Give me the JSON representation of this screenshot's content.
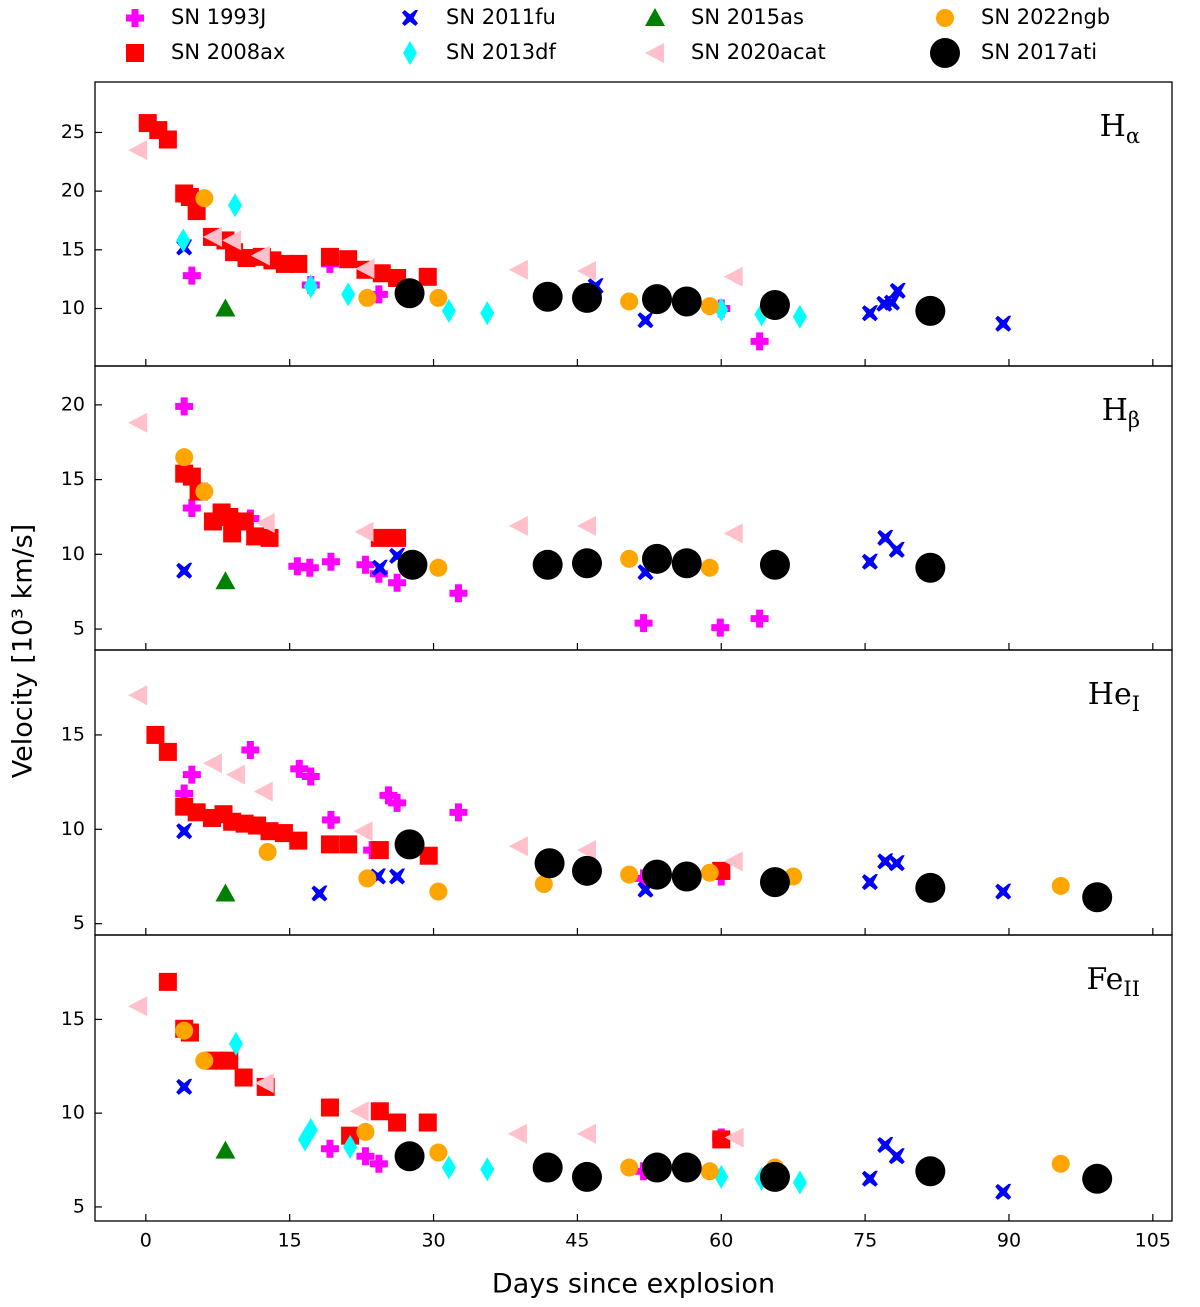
{
  "ylabel": "Velocity [10³ km/s]",
  "chart_data": [
    {
      "type": "scatter",
      "label": {
        "text": "H",
        "subscript": "α"
      },
      "xlim": [
        -5.3,
        107
      ],
      "ylim": [
        5.1,
        29.3
      ],
      "yticks": [
        10,
        15,
        20,
        25
      ],
      "series": [
        {
          "name": "SN 1993J",
          "color": "#ff00ff",
          "marker": "plus",
          "x": [
            4.8,
            17.2,
            19.2,
            24.3,
            60,
            64
          ],
          "values": [
            12.8,
            12.0,
            13.8,
            11.2,
            10.0,
            7.2
          ]
        },
        {
          "name": "SN 2008ax",
          "color": "#ff0000",
          "marker": "square",
          "x": [
            0.2,
            1.3,
            2.3,
            4,
            4.6,
            5.3,
            6.9,
            8.3,
            9.2,
            10.5,
            12.1,
            13.2,
            14.5,
            15.9,
            19.2,
            21.1,
            22.9,
            24.6,
            26.2,
            29.4
          ],
          "values": [
            25.8,
            25.2,
            24.4,
            19.8,
            19.5,
            18.3,
            16.1,
            15.8,
            14.8,
            14.3,
            14.4,
            14.1,
            13.8,
            13.8,
            14.4,
            14.2,
            13.3,
            13.0,
            12.6,
            12.7
          ]
        },
        {
          "name": "SN 2011fu",
          "color": "#0000ff",
          "marker": "x",
          "x": [
            4,
            46.9,
            52.1,
            75.5,
            77,
            77.8,
            78.4,
            89.4
          ],
          "values": [
            15.2,
            11.9,
            9.0,
            9.6,
            10.4,
            10.5,
            11.5,
            8.7
          ]
        },
        {
          "name": "SN 2013df",
          "color": "#00ffff",
          "marker": "diamond",
          "x": [
            3.9,
            9.3,
            17.2,
            21.1,
            31.6,
            35.6,
            60,
            64.2,
            68.2
          ],
          "values": [
            15.8,
            18.8,
            11.9,
            11.2,
            9.8,
            9.6,
            9.9,
            9.5,
            9.3
          ]
        },
        {
          "name": "SN 2015as",
          "color": "#008000",
          "marker": "triangle",
          "x": [
            8.3
          ],
          "values": [
            10.0
          ]
        },
        {
          "name": "SN 2020acat",
          "color": "#ffc0cb",
          "marker": "tleft",
          "x": [
            -0.8,
            7,
            9,
            12,
            22.9,
            38.9,
            46,
            61.3
          ],
          "values": [
            23.5,
            16.1,
            15.8,
            14.5,
            13.4,
            13.3,
            13.2,
            12.7
          ]
        },
        {
          "name": "SN 2022ngb",
          "color": "#ffa500",
          "marker": "circle",
          "x": [
            6.1,
            23.1,
            30.5,
            50.4,
            58.8,
            65
          ],
          "values": [
            19.4,
            10.9,
            10.9,
            10.6,
            10.2,
            10.0
          ]
        },
        {
          "name": "SN 2017ati",
          "color": "#000000",
          "marker": "bigcircle",
          "x": [
            27.5,
            41.9,
            46,
            53.3,
            56.4,
            65.6,
            81.8
          ],
          "values": [
            11.3,
            11.0,
            10.9,
            10.8,
            10.6,
            10.3,
            9.8
          ]
        }
      ]
    },
    {
      "type": "scatter",
      "label": {
        "text": "H",
        "subscript": "β"
      },
      "xlim": [
        -5.3,
        107
      ],
      "ylim": [
        3.6,
        22.6
      ],
      "yticks": [
        5,
        10,
        15,
        20
      ],
      "series": [
        {
          "name": "SN 1993J",
          "color": "#ff00ff",
          "marker": "plus",
          "x": [
            4,
            4.8,
            10.9,
            15.8,
            17.1,
            19.3,
            22.9,
            24.3,
            26.2,
            32.6,
            51.9,
            59.9,
            64
          ],
          "values": [
            19.9,
            13.1,
            12.4,
            9.2,
            9.1,
            9.5,
            9.3,
            8.7,
            8.1,
            7.4,
            5.4,
            5.1,
            5.7
          ]
        },
        {
          "name": "SN 2008ax",
          "color": "#ff0000",
          "marker": "square",
          "x": [
            4,
            4.8,
            5.5,
            7,
            7.9,
            8.7,
            9,
            10.3,
            11.4,
            12.9,
            24.4,
            26.2
          ],
          "values": [
            15.4,
            15.2,
            14.2,
            12.2,
            12.8,
            12.5,
            11.4,
            12.2,
            11.2,
            11.1,
            11.1,
            11.1
          ]
        },
        {
          "name": "SN 2011fu",
          "color": "#0000ff",
          "marker": "x",
          "x": [
            4,
            24.4,
            26.2,
            52.1,
            75.5,
            77.1,
            78.3
          ],
          "values": [
            8.9,
            9.1,
            9.9,
            8.8,
            9.5,
            11.1,
            10.3
          ]
        },
        {
          "name": "SN 2013df",
          "color": "#00ffff",
          "marker": "diamond",
          "x": [],
          "values": []
        },
        {
          "name": "SN 2015as",
          "color": "#008000",
          "marker": "triangle",
          "x": [
            8.3
          ],
          "values": [
            8.2
          ]
        },
        {
          "name": "SN 2020acat",
          "color": "#ffc0cb",
          "marker": "tleft",
          "x": [
            -0.8,
            12.5,
            22.8,
            38.9,
            46,
            61.3
          ],
          "values": [
            18.8,
            12.1,
            11.5,
            11.9,
            11.9,
            11.4
          ]
        },
        {
          "name": "SN 2022ngb",
          "color": "#ffa500",
          "marker": "circle",
          "x": [
            4,
            6.1,
            30.5,
            50.4,
            58.8
          ],
          "values": [
            16.5,
            14.2,
            9.1,
            9.7,
            9.1
          ]
        },
        {
          "name": "SN 2017ati",
          "color": "#000000",
          "marker": "bigcircle",
          "x": [
            27.8,
            41.9,
            46,
            53.3,
            56.4,
            65.6,
            81.8
          ],
          "values": [
            9.3,
            9.3,
            9.4,
            9.7,
            9.4,
            9.3,
            9.1
          ]
        }
      ]
    },
    {
      "type": "scatter",
      "label": {
        "text": "He",
        "subscript": "I"
      },
      "xlim": [
        -5.3,
        107
      ],
      "ylim": [
        4.4,
        19.5
      ],
      "yticks": [
        5,
        10,
        15
      ],
      "series": [
        {
          "name": "SN 1993J",
          "color": "#ff00ff",
          "marker": "plus",
          "x": [
            4,
            4.8,
            10.9,
            16,
            17.2,
            19.3,
            23.6,
            25.3,
            26.2,
            32.6,
            51.9,
            60
          ],
          "values": [
            11.9,
            12.9,
            14.2,
            13.2,
            12.8,
            10.5,
            8.9,
            11.8,
            11.4,
            10.9,
            7.4,
            7.5
          ]
        },
        {
          "name": "SN 2008ax",
          "color": "#ff0000",
          "marker": "square",
          "x": [
            1,
            2.3,
            4,
            5.3,
            6.9,
            8.1,
            9,
            10.3,
            11.6,
            12.9,
            14.4,
            15.9,
            19.2,
            21.1,
            24.4,
            29.5,
            60
          ],
          "values": [
            15.0,
            14.1,
            11.2,
            10.9,
            10.6,
            10.8,
            10.4,
            10.3,
            10.2,
            9.9,
            9.8,
            9.4,
            9.2,
            9.2,
            8.9,
            8.6,
            7.8
          ]
        },
        {
          "name": "SN 2011fu",
          "color": "#0000ff",
          "marker": "x",
          "x": [
            4,
            18.1,
            24.2,
            26.2,
            52.1,
            75.5,
            77.1,
            78.3,
            89.4
          ],
          "values": [
            9.9,
            6.6,
            7.5,
            7.5,
            6.8,
            7.2,
            8.3,
            8.2,
            6.7
          ]
        },
        {
          "name": "SN 2013df",
          "color": "#00ffff",
          "marker": "diamond",
          "x": [],
          "values": []
        },
        {
          "name": "SN 2015as",
          "color": "#008000",
          "marker": "triangle",
          "x": [
            8.3
          ],
          "values": [
            6.6
          ]
        },
        {
          "name": "SN 2020acat",
          "color": "#ffc0cb",
          "marker": "tleft",
          "x": [
            -0.8,
            7,
            9.4,
            12.3,
            22.7,
            38.9,
            46,
            61.3
          ],
          "values": [
            17.1,
            13.5,
            12.9,
            12.0,
            9.9,
            9.1,
            8.9,
            8.3
          ]
        },
        {
          "name": "SN 2022ngb",
          "color": "#ffa500",
          "marker": "circle",
          "x": [
            12.7,
            23.1,
            30.5,
            41.5,
            50.4,
            58.8,
            67.5,
            95.4
          ],
          "values": [
            8.8,
            7.4,
            6.7,
            7.1,
            7.6,
            7.7,
            7.5,
            7.0
          ]
        },
        {
          "name": "SN 2017ati",
          "color": "#000000",
          "marker": "bigcircle",
          "x": [
            27.5,
            42.1,
            46,
            53.3,
            56.4,
            65.6,
            81.8,
            99.2
          ],
          "values": [
            9.2,
            8.2,
            7.8,
            7.6,
            7.5,
            7.2,
            6.9,
            6.4
          ]
        }
      ]
    },
    {
      "type": "scatter",
      "label": {
        "text": "Fe",
        "subscript": "II"
      },
      "xlim": [
        -5.3,
        107
      ],
      "ylim": [
        4.25,
        19.5
      ],
      "yticks": [
        5,
        10,
        15
      ],
      "xlabel": "Days since explosion",
      "xticks": [
        0,
        15,
        30,
        45,
        60,
        75,
        90,
        105
      ],
      "series": [
        {
          "name": "SN 1993J",
          "color": "#ff00ff",
          "marker": "plus",
          "x": [
            19.2,
            22.9,
            24.3,
            51.9,
            60
          ],
          "values": [
            8.1,
            7.7,
            7.3,
            6.9,
            8.7
          ]
        },
        {
          "name": "SN 2008ax",
          "color": "#ff0000",
          "marker": "square",
          "x": [
            2.3,
            4,
            4.6,
            7.1,
            8.7,
            10.2,
            12.5,
            19.2,
            21.3,
            24.4,
            26.2,
            29.4,
            60
          ],
          "values": [
            17.0,
            14.5,
            14.3,
            12.8,
            12.8,
            11.9,
            11.4,
            10.3,
            8.8,
            10.1,
            9.5,
            9.5,
            8.6
          ]
        },
        {
          "name": "SN 2011fu",
          "color": "#0000ff",
          "marker": "x",
          "x": [
            4,
            75.5,
            77.1,
            78.3,
            89.4
          ],
          "values": [
            11.4,
            6.5,
            8.3,
            7.7,
            5.8
          ]
        },
        {
          "name": "SN 2013df",
          "color": "#00ffff",
          "marker": "diamond",
          "x": [
            9.4,
            16.6,
            17.2,
            21.3,
            31.6,
            35.6,
            60,
            64.2,
            68.2
          ],
          "values": [
            13.7,
            8.6,
            9.1,
            8.2,
            7.1,
            7.0,
            6.6,
            6.5,
            6.3
          ]
        },
        {
          "name": "SN 2015as",
          "color": "#008000",
          "marker": "triangle",
          "x": [
            8.3
          ],
          "values": [
            8.0
          ]
        },
        {
          "name": "SN 2020acat",
          "color": "#ffc0cb",
          "marker": "tleft",
          "x": [
            -0.8,
            12.4,
            22.3,
            38.8,
            46,
            61.4
          ],
          "values": [
            15.7,
            11.6,
            10.1,
            8.9,
            8.9,
            8.7
          ]
        },
        {
          "name": "SN 2022ngb",
          "color": "#ffa500",
          "marker": "circle",
          "x": [
            4,
            6.1,
            22.9,
            30.5,
            50.4,
            58.8,
            65.6,
            95.4
          ],
          "values": [
            14.4,
            12.8,
            9.0,
            7.9,
            7.1,
            6.9,
            7.1,
            7.3
          ]
        },
        {
          "name": "SN 2017ati",
          "color": "#000000",
          "marker": "bigcircle",
          "x": [
            27.5,
            41.9,
            46,
            53.3,
            56.4,
            65.6,
            81.8,
            99.2
          ],
          "values": [
            7.7,
            7.1,
            6.6,
            7.1,
            7.1,
            6.6,
            6.9,
            6.5
          ]
        }
      ]
    }
  ]
}
